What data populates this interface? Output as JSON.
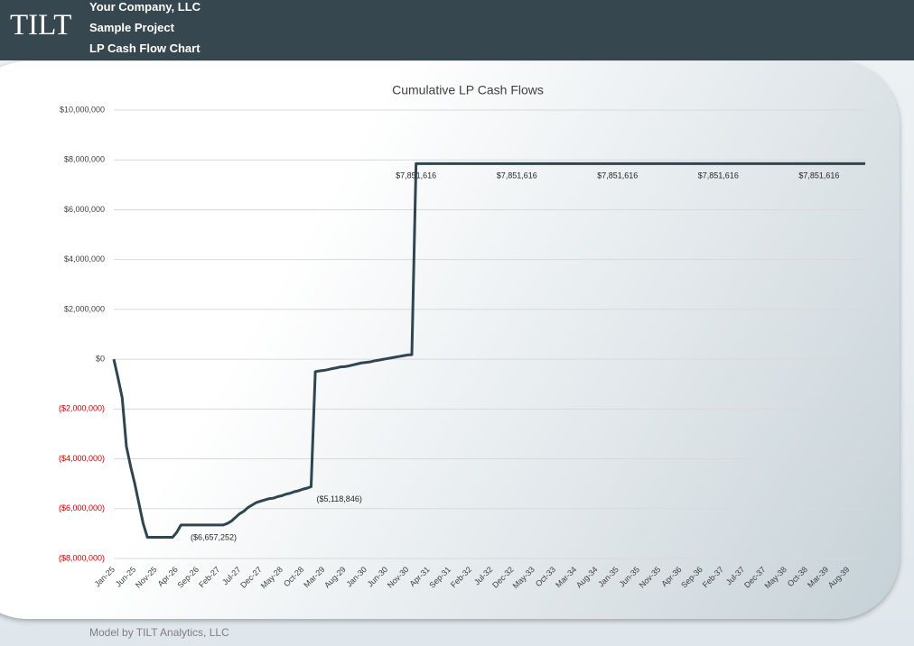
{
  "header": {
    "logo": "TILT",
    "company": "Your Company, LLC",
    "project": "Sample Project",
    "report": "LP Cash Flow Chart"
  },
  "footer": "Model by TILT Analytics, LLC",
  "chart_data": {
    "type": "line",
    "title": "Cumulative LP Cash Flows",
    "color": "#2f4550",
    "grid": true,
    "negative_tick_color": "#c00000",
    "categories": [
      "Jan-25",
      null,
      null,
      null,
      null,
      "Jun-25",
      null,
      null,
      null,
      null,
      "Nov-25",
      null,
      null,
      null,
      null,
      "Apr-26",
      null,
      null,
      null,
      null,
      "Sep-26",
      null,
      null,
      null,
      null,
      "Feb-27",
      null,
      null,
      null,
      null,
      "Jul-27",
      null,
      null,
      null,
      null,
      "Dec-27",
      null,
      null,
      null,
      null,
      "May-28",
      null,
      null,
      null,
      null,
      "Oct-28",
      null,
      null,
      null,
      null,
      "Mar-29",
      null,
      null,
      null,
      null,
      "Aug-29",
      null,
      null,
      null,
      null,
      "Jan-30",
      null,
      null,
      null,
      null,
      "Jun-30",
      null,
      null,
      null,
      null,
      "Nov-30",
      null,
      null,
      null,
      null,
      "Apr-31",
      null,
      null,
      null,
      null,
      "Sep-31",
      null,
      null,
      null,
      null,
      "Feb-32",
      null,
      null,
      null,
      null,
      "Jul-32",
      null,
      null,
      null,
      null,
      "Dec-32",
      null,
      null,
      null,
      null,
      "May-33",
      null,
      null,
      null,
      null,
      "Oct-33",
      null,
      null,
      null,
      null,
      "Mar-34",
      null,
      null,
      null,
      null,
      "Aug-34",
      null,
      null,
      null,
      null,
      "Jan-35",
      null,
      null,
      null,
      null,
      "Jun-35",
      null,
      null,
      null,
      null,
      "Nov-35",
      null,
      null,
      null,
      null,
      "Apr-36",
      null,
      null,
      null,
      null,
      "Sep-36",
      null,
      null,
      null,
      null,
      "Feb-37",
      null,
      null,
      null,
      null,
      "Jul-37",
      null,
      null,
      null,
      null,
      "Dec-37",
      null,
      null,
      null,
      null,
      "May-38",
      null,
      null,
      null,
      null,
      "Oct-38",
      null,
      null,
      null,
      null,
      "Mar-39",
      null,
      null,
      null,
      null,
      "Aug-39",
      null,
      null,
      null,
      null
    ],
    "values": [
      0,
      -750000,
      -1550000,
      -3500000,
      -4300000,
      -5000000,
      -5800000,
      -6600000,
      -7150000,
      -7150000,
      -7150000,
      -7150000,
      -7150000,
      -7150000,
      -7150000,
      -6950000,
      -6657252,
      -6657252,
      -6657252,
      -6657252,
      -6657252,
      -6657252,
      -6657252,
      -6657252,
      -6657252,
      -6657252,
      -6657252,
      -6600000,
      -6500000,
      -6350000,
      -6200000,
      -6100000,
      -5950000,
      -5850000,
      -5750000,
      -5700000,
      -5650000,
      -5600000,
      -5580000,
      -5520000,
      -5480000,
      -5420000,
      -5380000,
      -5320000,
      -5280000,
      -5220000,
      -5180000,
      -5118846,
      -500000,
      -470000,
      -450000,
      -420000,
      -380000,
      -350000,
      -310000,
      -300000,
      -270000,
      -230000,
      -190000,
      -150000,
      -130000,
      -110000,
      -70000,
      -40000,
      -10000,
      20000,
      50000,
      80000,
      110000,
      140000,
      170000,
      180000,
      7851616,
      7851616,
      7851616,
      7851616,
      7851616,
      7851616,
      7851616,
      7851616,
      7851616,
      7851616,
      7851616,
      7851616,
      7851616,
      7851616,
      7851616,
      7851616,
      7851616,
      7851616,
      7851616,
      7851616,
      7851616,
      7851616,
      7851616,
      7851616,
      7851616,
      7851616,
      7851616,
      7851616,
      7851616,
      7851616,
      7851616,
      7851616,
      7851616,
      7851616,
      7851616,
      7851616,
      7851616,
      7851616,
      7851616,
      7851616,
      7851616,
      7851616,
      7851616,
      7851616,
      7851616,
      7851616,
      7851616,
      7851616,
      7851616,
      7851616,
      7851616,
      7851616,
      7851616,
      7851616,
      7851616,
      7851616,
      7851616,
      7851616,
      7851616,
      7851616,
      7851616,
      7851616,
      7851616,
      7851616,
      7851616,
      7851616,
      7851616,
      7851616,
      7851616,
      7851616,
      7851616,
      7851616,
      7851616,
      7851616,
      7851616,
      7851616,
      7851616,
      7851616,
      7851616,
      7851616,
      7851616,
      7851616,
      7851616,
      7851616,
      7851616,
      7851616,
      7851616,
      7851616,
      7851616,
      7851616,
      7851616,
      7851616,
      7851616,
      7851616,
      7851616,
      7851616,
      7851616,
      7851616,
      7851616,
      7851616,
      7851616,
      7851616,
      7851616,
      7851616,
      7851616,
      7851616,
      7851616,
      7851616
    ],
    "value_labels": [
      null,
      null,
      null,
      null,
      null,
      null,
      null,
      null,
      null,
      null,
      null,
      null,
      null,
      null,
      null,
      null,
      null,
      "($6,657,252)",
      null,
      null,
      null,
      null,
      null,
      null,
      null,
      null,
      null,
      null,
      null,
      null,
      null,
      null,
      null,
      null,
      null,
      null,
      null,
      null,
      null,
      null,
      null,
      null,
      null,
      null,
      null,
      null,
      null,
      "($5,118,846)",
      null,
      null,
      null,
      null,
      null,
      null,
      null,
      null,
      null,
      null,
      null,
      null,
      null,
      null,
      null,
      null,
      null,
      null,
      null,
      null,
      null,
      null,
      null,
      null,
      "$7,851,616",
      null,
      null,
      null,
      null,
      null,
      null,
      null,
      null,
      null,
      null,
      null,
      null,
      null,
      null,
      null,
      null,
      null,
      null,
      null,
      null,
      null,
      null,
      null,
      "$7,851,616",
      null,
      null,
      null,
      null,
      null,
      null,
      null,
      null,
      null,
      null,
      null,
      null,
      null,
      null,
      null,
      null,
      null,
      null,
      null,
      null,
      null,
      null,
      null,
      "$7,851,616",
      null,
      null,
      null,
      null,
      null,
      null,
      null,
      null,
      null,
      null,
      null,
      null,
      null,
      null,
      null,
      null,
      null,
      null,
      null,
      null,
      null,
      null,
      null,
      "$7,851,616",
      null,
      null,
      null,
      null,
      null,
      null,
      null,
      null,
      null,
      null,
      null,
      null,
      null,
      null,
      null,
      null,
      null,
      null,
      null,
      null,
      null,
      null,
      null,
      "$7,851,616",
      null,
      null,
      null,
      null,
      null,
      null,
      null,
      null,
      null,
      null,
      null
    ],
    "ylim": [
      -8000000,
      10000000
    ],
    "yticks": [
      {
        "value": -8000000,
        "label": "($8,000,000)"
      },
      {
        "value": -6000000,
        "label": "($6,000,000)"
      },
      {
        "value": -4000000,
        "label": "($4,000,000)"
      },
      {
        "value": -2000000,
        "label": "($2,000,000)"
      },
      {
        "value": 0,
        "label": "$0"
      },
      {
        "value": 2000000,
        "label": "$2,000,000"
      },
      {
        "value": 4000000,
        "label": "$4,000,000"
      },
      {
        "value": 6000000,
        "label": "$6,000,000"
      },
      {
        "value": 8000000,
        "label": "$8,000,000"
      },
      {
        "value": 10000000,
        "label": "$10,000,000"
      }
    ]
  }
}
